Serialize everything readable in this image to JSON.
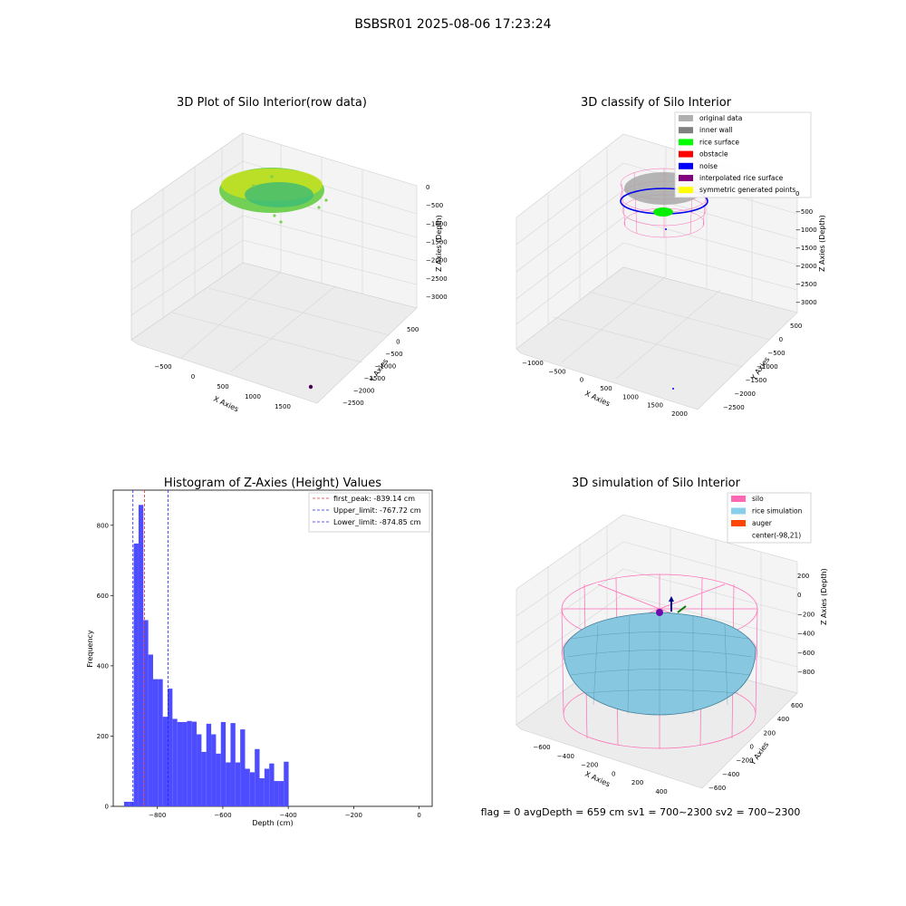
{
  "figure": {
    "suptitle": "BSBSR01 2025-08-06 17:23:24",
    "footer": "flag = 0     avgDepth = 659 cm  sv1 = 700~2300  sv2 = 700~2300"
  },
  "colors": {
    "hist_bar": "#4d4dff",
    "first_peak": "#e03030",
    "limits": "#2020ff",
    "silo": "#ff69b4",
    "rice": "#87c7df",
    "rice_edge": "#3e7f99",
    "auger": "#ff4500",
    "green": "#00ee00",
    "noise": "#0000ee"
  },
  "chart_data": [
    {
      "type": "scatter3d",
      "title": "3D Plot of Silo Interior(row data)",
      "xlabel": "X Axies",
      "ylabel": "Y Axies",
      "zlabel": "Z Axies (Depth)",
      "x_ticks": [
        "−500",
        "0",
        "500",
        "1000",
        "1500"
      ],
      "y_ticks": [
        "500",
        "0",
        "−500",
        "−1000",
        "−1500",
        "−2000",
        "−2500"
      ],
      "z_ticks": [
        "0",
        "−500",
        "−1000",
        "−1500",
        "−2000",
        "−2500",
        "−3000"
      ],
      "xlim": [
        -800,
        1800
      ],
      "ylim": [
        -2600,
        700
      ],
      "zlim": [
        -3300,
        200
      ],
      "colormap": "viridis"
    },
    {
      "type": "scatter3d",
      "title": "3D classify of Silo Interior",
      "xlabel": "X Axies",
      "ylabel": "Y Axies",
      "zlabel": "Z Axies (Depth)",
      "x_ticks": [
        "−1000",
        "−500",
        "0",
        "500",
        "1000",
        "1500",
        "2000"
      ],
      "y_ticks": [
        "500",
        "0",
        "−500",
        "−1000",
        "−1500",
        "−2000",
        "−2500"
      ],
      "z_ticks": [
        "0",
        "−500",
        "−1000",
        "−1500",
        "−2000",
        "−2500",
        "−3000"
      ],
      "xlim": [
        -1200,
        2100
      ],
      "ylim": [
        -2600,
        700
      ],
      "zlim": [
        -3200,
        200
      ],
      "legend": [
        {
          "label": "original data",
          "color": "#b0b0b0"
        },
        {
          "label": "inner wall",
          "color": "#808080"
        },
        {
          "label": "rice surface",
          "color": "#00ff00"
        },
        {
          "label": "obstacle",
          "color": "#ff0000"
        },
        {
          "label": "noise",
          "color": "#0000ff"
        },
        {
          "label": "interpolated rice surface",
          "color": "#800080"
        },
        {
          "label": "symmetric generated points",
          "color": "#ffff00"
        }
      ]
    },
    {
      "type": "bar",
      "title": "Histogram of Z-Axies (Height) Values",
      "xlabel": "Depth (cm)",
      "ylabel": "Frequency",
      "xlim": [
        -935,
        40
      ],
      "ylim": [
        0,
        900
      ],
      "x_ticks": [
        -800,
        -600,
        -400,
        -200,
        0
      ],
      "x_tick_labels": [
        "−800",
        "−600",
        "−400",
        "−200",
        "0"
      ],
      "y_ticks": [
        0,
        200,
        400,
        600,
        800
      ],
      "bin_width": 14.8,
      "bin_start": -902,
      "values": [
        13,
        13,
        748,
        858,
        530,
        432,
        362,
        362,
        255,
        335,
        249,
        240,
        240,
        243,
        241,
        205,
        155,
        235,
        205,
        150,
        240,
        125,
        237,
        125,
        219,
        107,
        97,
        163,
        80,
        107,
        122,
        72,
        72,
        127
      ],
      "vlines": [
        {
          "x": -839.14,
          "style": "first_peak"
        },
        {
          "x": -767.72,
          "style": "limits"
        },
        {
          "x": -874.85,
          "style": "limits"
        }
      ],
      "legend": [
        {
          "label": "first_peak: -839.14 cm",
          "style": "first_peak"
        },
        {
          "label": "Upper_limit: -767.72 cm",
          "style": "limits"
        },
        {
          "label": "Lower_limit: -874.85 cm",
          "style": "limits"
        }
      ]
    },
    {
      "type": "surface3d",
      "title": "3D simulation of Silo Interior",
      "xlabel": "X Axies",
      "ylabel": "Y Axies",
      "zlabel": "Z Axies (Depth)",
      "x_ticks": [
        "−600",
        "−400",
        "−200",
        "0",
        "200",
        "400"
      ],
      "y_ticks": [
        "600",
        "400",
        "200",
        "0",
        "−200",
        "−400",
        "−600"
      ],
      "z_ticks": [
        "200",
        "0",
        "−200",
        "−400",
        "−600",
        "−800"
      ],
      "xlim": [
        -700,
        500
      ],
      "ylim": [
        -700,
        700
      ],
      "zlim": [
        -950,
        350
      ],
      "legend": [
        {
          "label": "silo",
          "color": "#ff69b4"
        },
        {
          "label": "rice simulation",
          "color": "#87ceeb"
        },
        {
          "label": "auger",
          "color": "#ff4500"
        },
        {
          "label": "center(-98,21)",
          "color": null
        }
      ]
    }
  ]
}
